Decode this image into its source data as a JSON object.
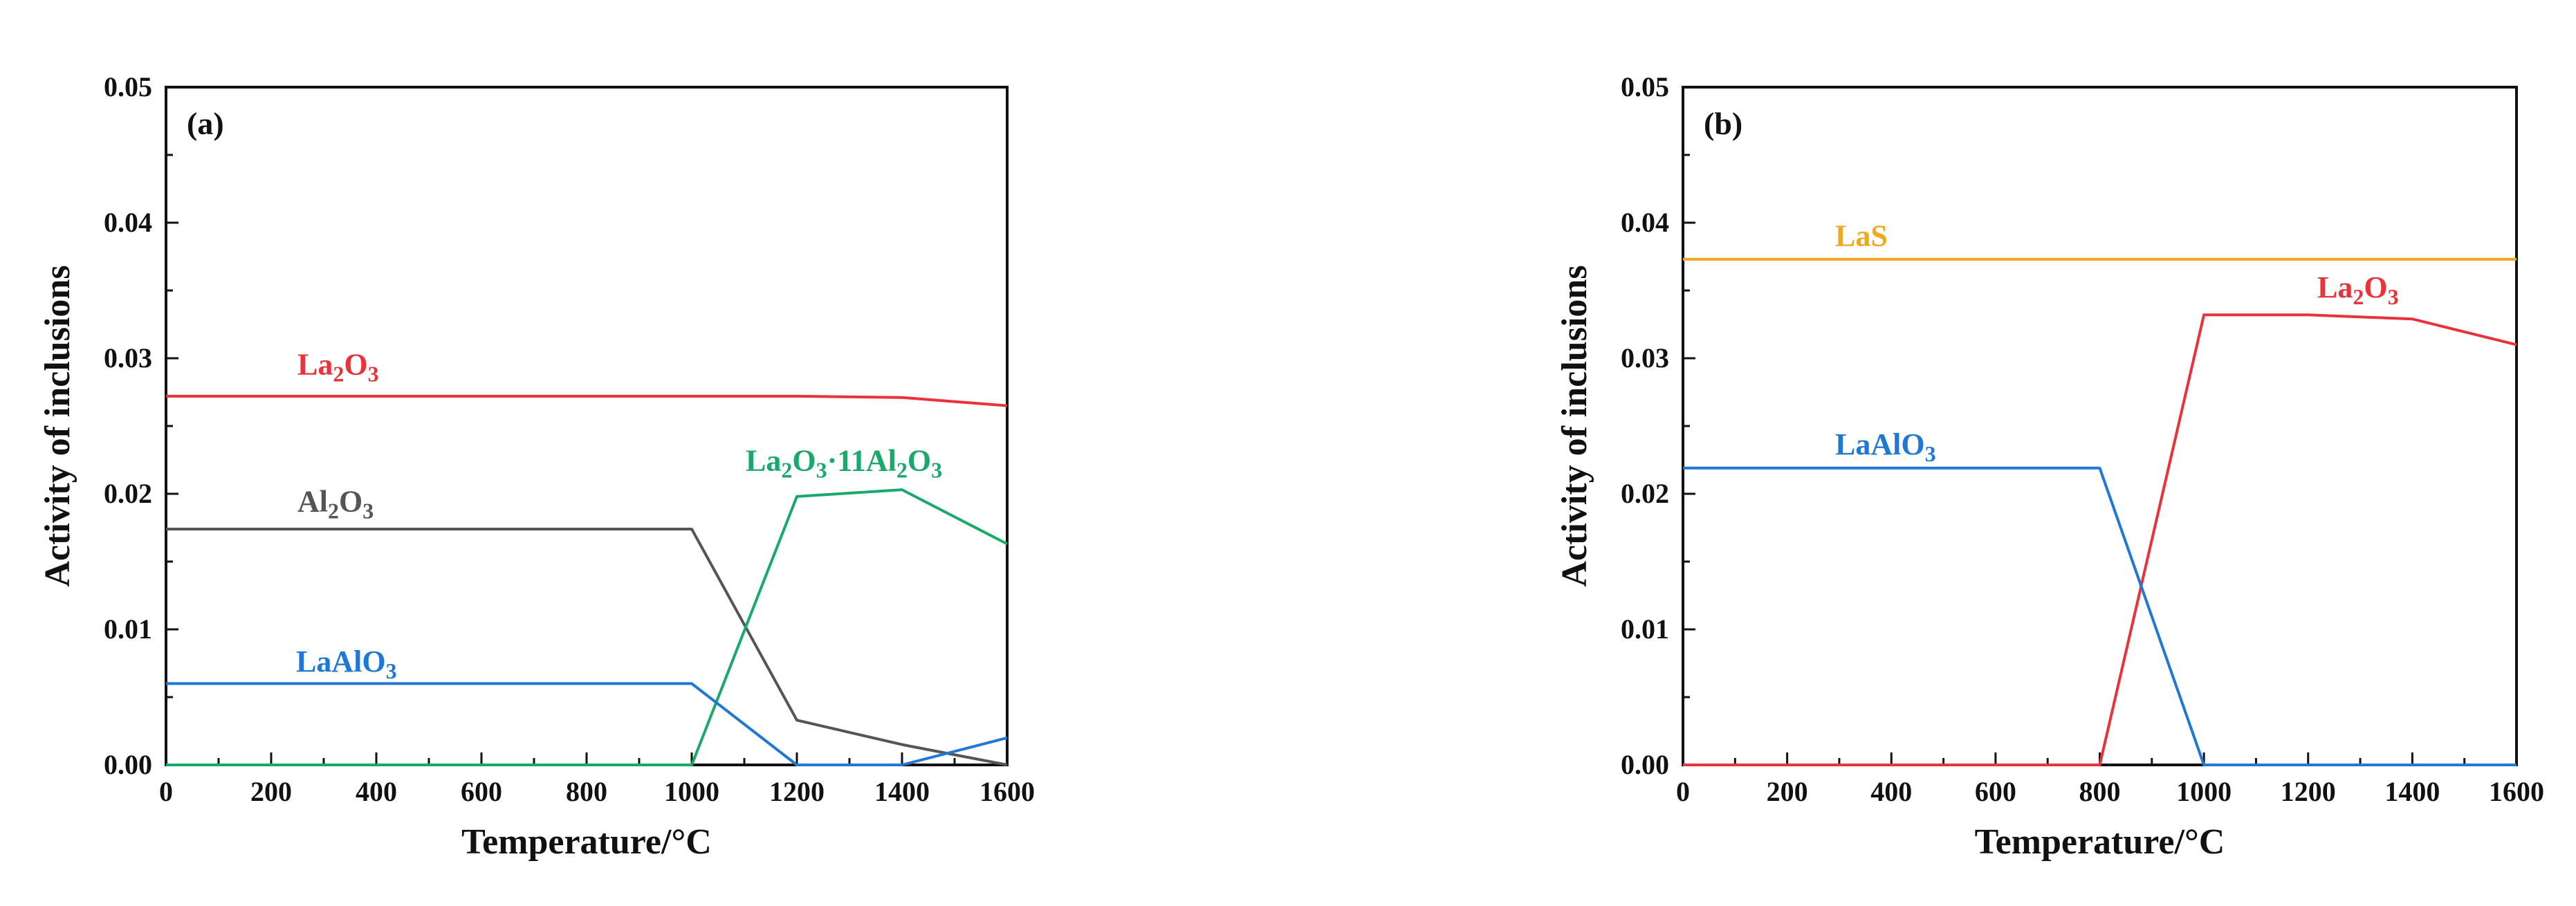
{
  "chart_data": [
    {
      "type": "line",
      "panel_label": "(a)",
      "xlabel": "Temperature/°C",
      "ylabel": "Activity of inclusions",
      "xlim": [
        0,
        1600
      ],
      "ylim": [
        0,
        0.05
      ],
      "x_ticks": [
        "0",
        "200",
        "400",
        "600",
        "800",
        "1000",
        "1200",
        "1400",
        "1600"
      ],
      "y_ticks": [
        "0.00",
        "0.01",
        "0.02",
        "0.03",
        "0.04",
        "0.05"
      ],
      "series": [
        {
          "name": "La2O3",
          "label_base": "La",
          "label_sub1": "2",
          "label_mid": "O",
          "label_sub2": "3",
          "label_tail": "",
          "label_sub3": "",
          "color": "#e8333a",
          "x": [
            0,
            200,
            400,
            600,
            800,
            1000,
            1200,
            1400,
            1600
          ],
          "y": [
            0.0272,
            0.0272,
            0.0272,
            0.0272,
            0.0272,
            0.0272,
            0.0272,
            0.0271,
            0.0265
          ]
        },
        {
          "name": "Al2O3",
          "label_base": "Al",
          "label_sub1": "2",
          "label_mid": "O",
          "label_sub2": "3",
          "label_tail": "",
          "label_sub3": "",
          "color": "#555555",
          "x": [
            0,
            200,
            400,
            600,
            800,
            1000,
            1200,
            1400,
            1600
          ],
          "y": [
            0.0174,
            0.0174,
            0.0174,
            0.0174,
            0.0174,
            0.0174,
            0.0033,
            0.0015,
            0.0
          ]
        },
        {
          "name": "La2O3·11Al2O3",
          "label_base": "La",
          "label_sub1": "2",
          "label_mid": "O",
          "label_sub2": "3",
          "label_tail": "·11Al",
          "label_sub3": "2",
          "label_tail2": "O",
          "label_sub4": "3",
          "color": "#1aa86b",
          "x": [
            0,
            200,
            400,
            600,
            800,
            1000,
            1200,
            1400,
            1600
          ],
          "y": [
            0.0,
            0.0,
            0.0,
            0.0,
            0.0,
            0.0,
            0.0198,
            0.0203,
            0.0163
          ]
        },
        {
          "name": "LaAlO3",
          "label_base": "LaAlO",
          "label_sub1": "3",
          "label_mid": "",
          "label_sub2": "",
          "label_tail": "",
          "label_sub3": "",
          "color": "#1f77d6",
          "x": [
            0,
            200,
            400,
            600,
            800,
            1000,
            1200,
            1400,
            1600
          ],
          "y": [
            0.006,
            0.006,
            0.006,
            0.006,
            0.006,
            0.006,
            0.0,
            0.0,
            0.002
          ]
        }
      ]
    },
    {
      "type": "line",
      "panel_label": "(b)",
      "xlabel": "Temperature/°C",
      "ylabel": "Activity of inclusions",
      "xlim": [
        0,
        1600
      ],
      "ylim": [
        0,
        0.05
      ],
      "x_ticks": [
        "0",
        "200",
        "400",
        "600",
        "800",
        "1000",
        "1200",
        "1400",
        "1600"
      ],
      "y_ticks": [
        "0.00",
        "0.01",
        "0.02",
        "0.03",
        "0.04",
        "0.05"
      ],
      "series": [
        {
          "name": "LaS",
          "label_base": "LaS",
          "label_sub1": "",
          "label_mid": "",
          "label_sub2": "",
          "label_tail": "",
          "label_sub3": "",
          "color": "#f0a81c",
          "x": [
            0,
            200,
            400,
            600,
            800,
            1000,
            1200,
            1400,
            1600
          ],
          "y": [
            0.0373,
            0.0373,
            0.0373,
            0.0373,
            0.0373,
            0.0373,
            0.0373,
            0.0373,
            0.0373
          ]
        },
        {
          "name": "La2O3",
          "label_base": "La",
          "label_sub1": "2",
          "label_mid": "O",
          "label_sub2": "3",
          "label_tail": "",
          "label_sub3": "",
          "color": "#e8333a",
          "x": [
            0,
            200,
            400,
            600,
            800,
            1000,
            1200,
            1400,
            1600
          ],
          "y": [
            0.0,
            0.0,
            0.0,
            0.0,
            0.0,
            0.0332,
            0.0332,
            0.0329,
            0.031
          ]
        },
        {
          "name": "LaAlO3",
          "label_base": "LaAlO",
          "label_sub1": "3",
          "label_mid": "",
          "label_sub2": "",
          "label_tail": "",
          "label_sub3": "",
          "color": "#1f77d6",
          "x": [
            0,
            200,
            400,
            600,
            800,
            1000,
            1200,
            1400,
            1600
          ],
          "y": [
            0.0219,
            0.0219,
            0.0219,
            0.0219,
            0.0219,
            0.0,
            0.0,
            0.0,
            0.0
          ]
        }
      ]
    }
  ]
}
